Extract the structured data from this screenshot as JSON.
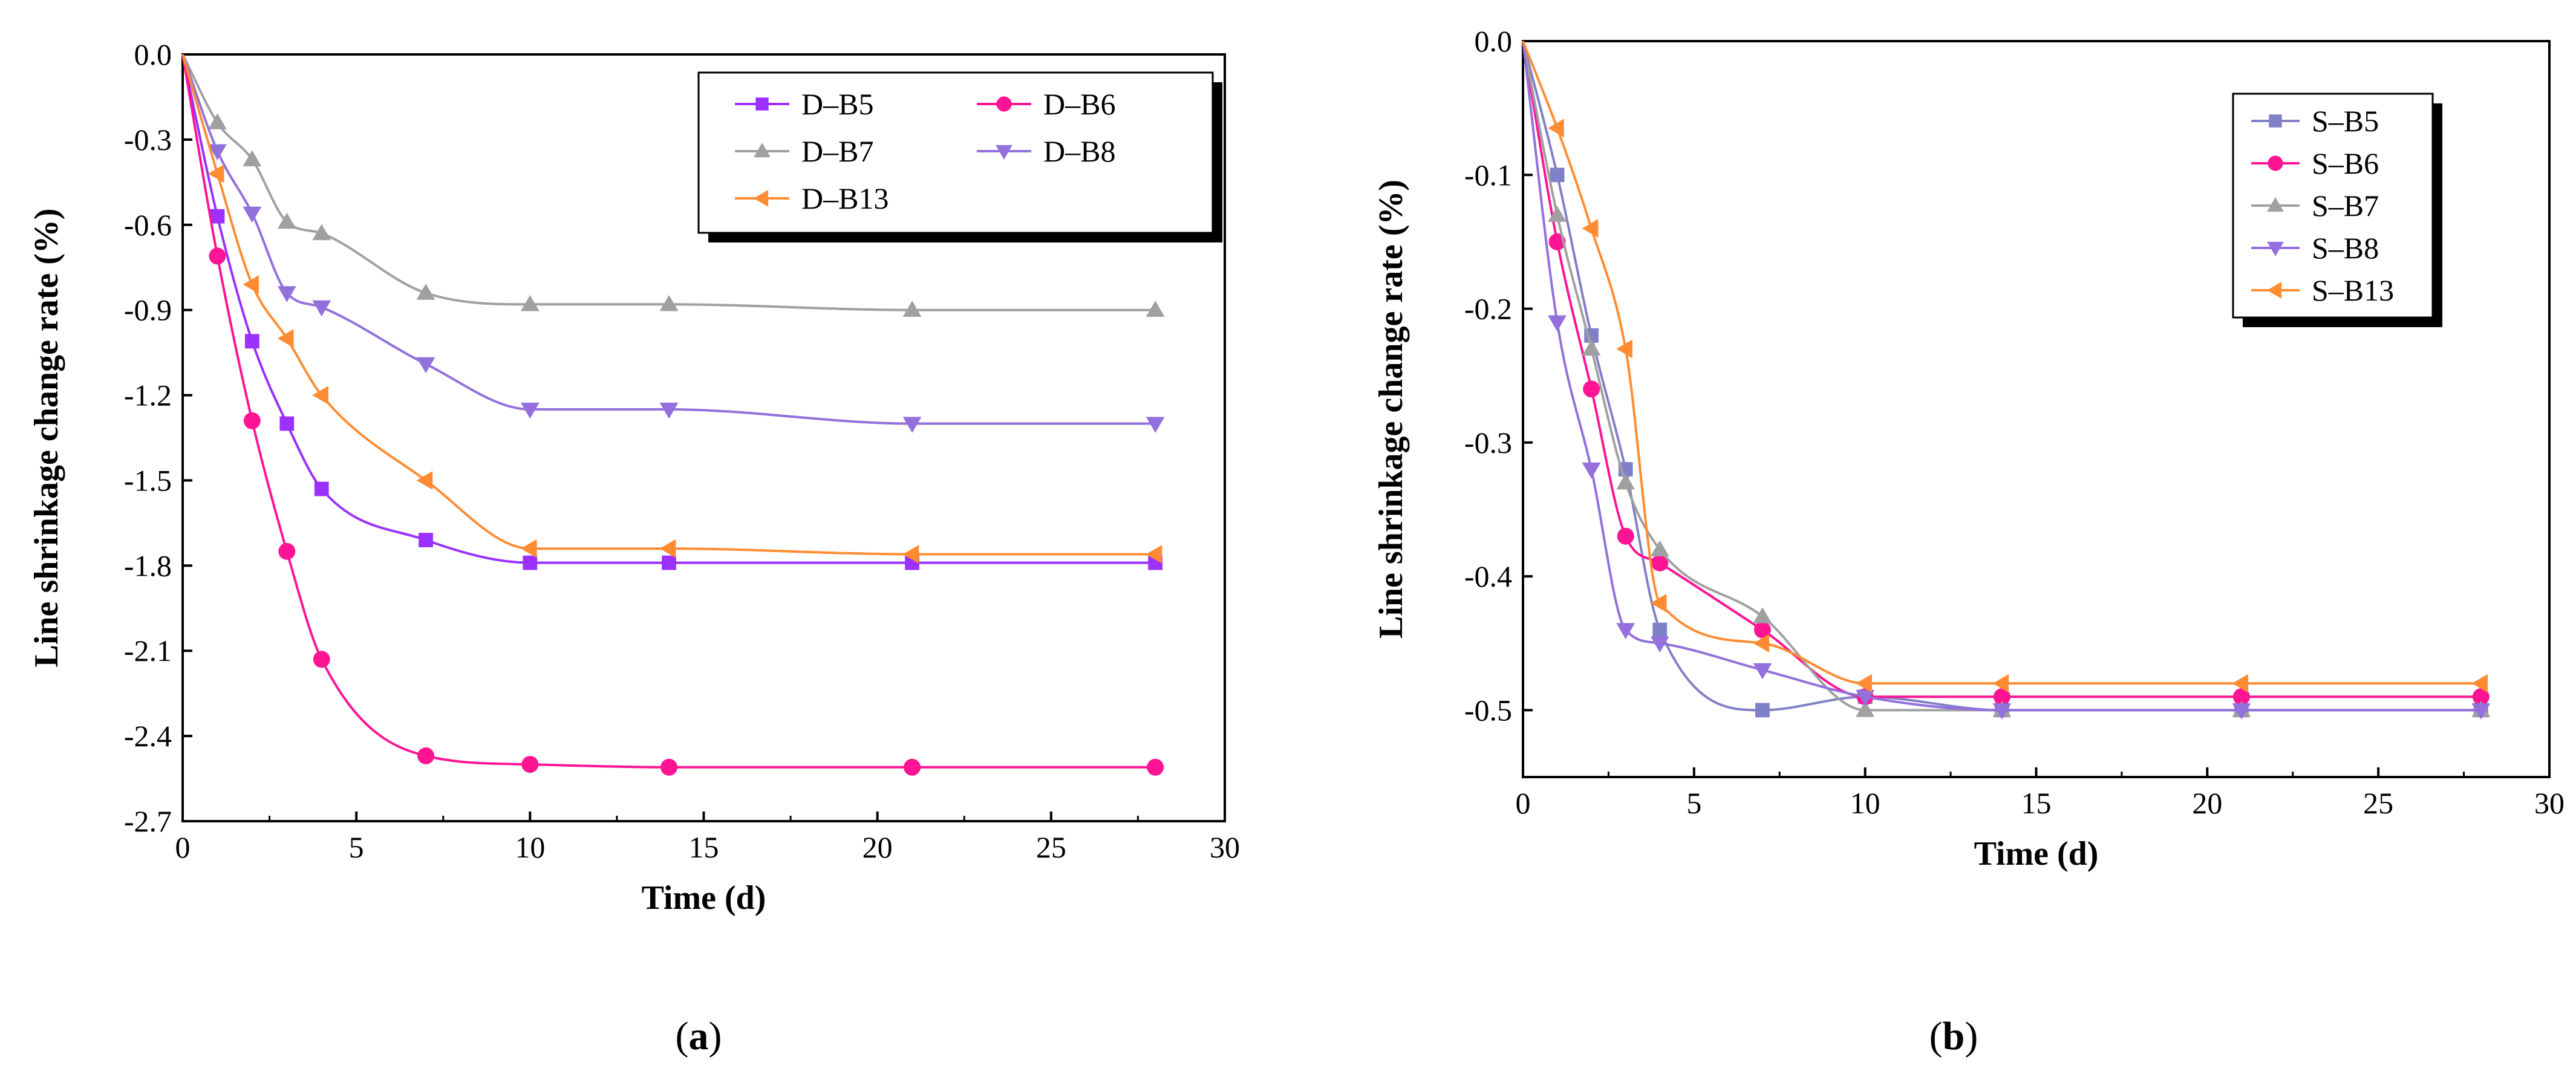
{
  "chart_data": [
    {
      "type": "line",
      "panel_label_prefix": "(",
      "panel_label_letter": "a",
      "panel_label_suffix": ")",
      "xlabel": "Time (d)",
      "ylabel": "Line shrinkage change rate (%)",
      "xlim": [
        0,
        30
      ],
      "ylim": [
        -2.7,
        0.0
      ],
      "xticks": [
        "0",
        "5",
        "10",
        "15",
        "20",
        "25",
        "30"
      ],
      "yticks": [
        "0.0",
        "-0.3",
        "-0.6",
        "-0.9",
        "-1.2",
        "-1.5",
        "-1.8",
        "-2.1",
        "-2.4",
        "-2.7"
      ],
      "x": [
        0,
        1,
        2,
        3,
        4,
        7,
        10,
        14,
        21,
        28
      ],
      "legend_position": "top-right",
      "legend_columns": 2,
      "series": [
        {
          "name": "D–B5",
          "color": "#9b30ff",
          "marker": "square",
          "values": [
            0,
            -0.57,
            -1.01,
            -1.3,
            -1.53,
            -1.71,
            -1.79,
            -1.79,
            -1.79,
            -1.79
          ]
        },
        {
          "name": "D–B6",
          "color": "#ff1493",
          "marker": "circle",
          "values": [
            0,
            -0.71,
            -1.29,
            -1.75,
            -2.13,
            -2.47,
            -2.5,
            -2.51,
            -2.51,
            -2.51
          ]
        },
        {
          "name": "D–B7",
          "color": "#a0a0a0",
          "marker": "triangle-up",
          "values": [
            0,
            -0.24,
            -0.37,
            -0.59,
            -0.63,
            -0.84,
            -0.88,
            -0.88,
            -0.9,
            -0.9
          ]
        },
        {
          "name": "D–B8",
          "color": "#9370db",
          "marker": "triangle-down",
          "values": [
            0,
            -0.34,
            -0.56,
            -0.84,
            -0.89,
            -1.09,
            -1.25,
            -1.25,
            -1.3,
            -1.3
          ]
        },
        {
          "name": "D–B13",
          "color": "#ff8c32",
          "marker": "triangle-left",
          "values": [
            0,
            -0.42,
            -0.81,
            -1.0,
            -1.2,
            -1.5,
            -1.74,
            -1.74,
            -1.76,
            -1.76
          ]
        }
      ]
    },
    {
      "type": "line",
      "panel_label_prefix": "(",
      "panel_label_letter": "b",
      "panel_label_suffix": ")",
      "xlabel": "Time (d)",
      "ylabel": "Line shrinkage change rate (%)",
      "xlim": [
        0,
        30
      ],
      "ylim": [
        -0.55,
        0.0
      ],
      "xticks": [
        "0",
        "5",
        "10",
        "15",
        "20",
        "25",
        "30"
      ],
      "yticks": [
        "0.0",
        "-0.1",
        "-0.2",
        "-0.3",
        "-0.4",
        "-0.5"
      ],
      "x": [
        0,
        1,
        2,
        3,
        4,
        7,
        10,
        14,
        21,
        28
      ],
      "legend_position": "top-right",
      "legend_columns": 1,
      "series": [
        {
          "name": "S–B5",
          "color": "#8080c8",
          "marker": "square",
          "values": [
            0,
            -0.1,
            -0.22,
            -0.32,
            -0.44,
            -0.5,
            -0.49,
            -0.5,
            -0.5,
            -0.5
          ]
        },
        {
          "name": "S–B6",
          "color": "#ff1493",
          "marker": "circle",
          "values": [
            0,
            -0.15,
            -0.26,
            -0.37,
            -0.39,
            -0.44,
            -0.49,
            -0.49,
            -0.49,
            -0.49
          ]
        },
        {
          "name": "S–B7",
          "color": "#a0a0a0",
          "marker": "triangle-up",
          "values": [
            0,
            -0.13,
            -0.23,
            -0.33,
            -0.38,
            -0.43,
            -0.5,
            -0.5,
            -0.5,
            -0.5
          ]
        },
        {
          "name": "S–B8",
          "color": "#9370db",
          "marker": "triangle-down",
          "values": [
            0,
            -0.21,
            -0.32,
            -0.44,
            -0.45,
            -0.47,
            -0.49,
            -0.5,
            -0.5,
            -0.5
          ]
        },
        {
          "name": "S–B13",
          "color": "#ff8c32",
          "marker": "triangle-left",
          "values": [
            0,
            -0.065,
            -0.14,
            -0.23,
            -0.42,
            -0.45,
            -0.48,
            -0.48,
            -0.48,
            -0.48
          ]
        }
      ]
    }
  ]
}
